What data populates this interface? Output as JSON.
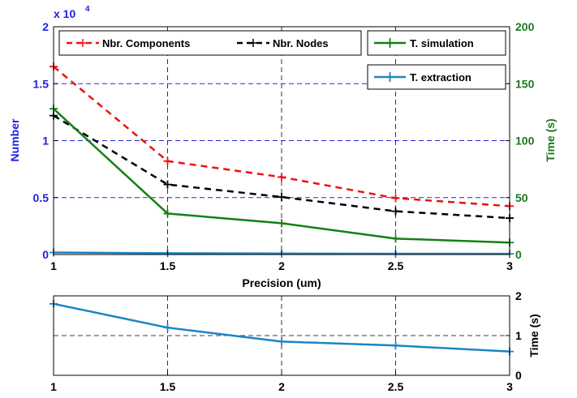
{
  "chart_data": [
    {
      "type": "line",
      "x": [
        1,
        1.5,
        2,
        2.5,
        3
      ],
      "xlabel": "Precision (um)",
      "xlim": [
        1,
        3
      ],
      "x_ticks": [
        "1",
        "1.5",
        "2",
        "2.5",
        "3"
      ],
      "left_axis": {
        "label": "Number",
        "exponent_label": "x 10",
        "exponent_power": "4",
        "ylim": [
          0,
          20000
        ],
        "ticks": [
          "0",
          "0.5",
          "1",
          "1.5",
          "2"
        ],
        "color": "#1f1fe6"
      },
      "right_axis": {
        "label": "Time (s)",
        "ylim": [
          0,
          200
        ],
        "ticks": [
          "0",
          "50",
          "100",
          "150",
          "200"
        ],
        "color": "#1a7a1a"
      },
      "grid": true,
      "series": [
        {
          "name": "Nbr. Components",
          "axis": "left",
          "values": [
            16500,
            8200,
            6800,
            4950,
            4250
          ],
          "color": "#ee1111",
          "dashed": true
        },
        {
          "name": "Nbr. Nodes",
          "axis": "left",
          "values": [
            12200,
            6150,
            5050,
            3800,
            3200
          ],
          "color": "#000000",
          "dashed": true
        },
        {
          "name": "T. simulation",
          "axis": "right",
          "values": [
            128,
            36,
            27.5,
            14,
            10.5
          ],
          "color": "#138013",
          "dashed": false
        },
        {
          "name": "T. extraction",
          "axis": "right",
          "values": [
            1.8,
            1.2,
            0.85,
            0.75,
            0.6
          ],
          "color": "#1b85c4",
          "dashed": false
        }
      ],
      "legend": {
        "placement": "top"
      }
    },
    {
      "type": "line",
      "x": [
        1,
        1.5,
        2,
        2.5,
        3
      ],
      "xlim": [
        1,
        3
      ],
      "x_ticks": [
        "1",
        "1.5",
        "2",
        "2.5",
        "3"
      ],
      "right_axis": {
        "label": "Time (s)",
        "ylim": [
          0,
          2
        ],
        "ticks": [
          "0",
          "1",
          "2"
        ]
      },
      "grid": true,
      "series": [
        {
          "axis": "right",
          "values": [
            1.8,
            1.2,
            0.85,
            0.75,
            0.6
          ],
          "color": "#1b85c4",
          "dashed": false
        }
      ]
    }
  ]
}
